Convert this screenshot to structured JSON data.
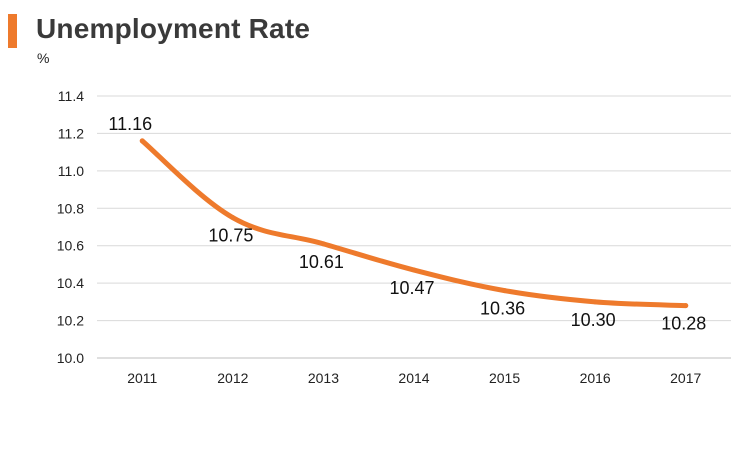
{
  "header": {
    "title": "Unemployment Rate",
    "unit": "%"
  },
  "colors": {
    "accent": "#ee7a2c",
    "line": "#ee7a2c",
    "grid": "#d9d9d9"
  },
  "chart_data": {
    "type": "line",
    "title": "Unemployment Rate",
    "ylabel": "%",
    "xlabel": "",
    "categories": [
      "2011",
      "2012",
      "2013",
      "2014",
      "2015",
      "2016",
      "2017"
    ],
    "series": [
      {
        "values": [
          11.16,
          10.75,
          10.61,
          10.47,
          10.36,
          10.3,
          10.28
        ]
      }
    ],
    "data_labels": [
      "11.16",
      "10.75",
      "10.61",
      "10.47",
      "10.36",
      "10.30",
      "10.28"
    ],
    "y_ticks": [
      "10.0",
      "10.2",
      "10.4",
      "10.6",
      "10.8",
      "11.0",
      "11.2",
      "11.4"
    ],
    "ylim": [
      10.0,
      11.4
    ],
    "grid": true,
    "legend": "none"
  }
}
